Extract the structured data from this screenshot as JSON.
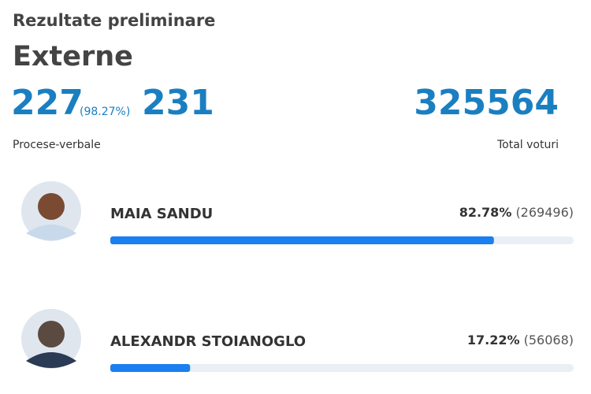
{
  "header": {
    "title": "Rezultate preliminare",
    "subtitle": "Externe"
  },
  "stats": {
    "processed": 227,
    "processed_pct": "(98.27%)",
    "total_protocols": 231,
    "protocols_label": "Procese-verbale",
    "total_votes": 325564,
    "votes_label": "Total voturi"
  },
  "candidates": [
    {
      "name": "MAIA SANDU",
      "percent": {
        "value": 82.78,
        "label": "82.78%"
      },
      "votes": "(269496)",
      "bar_color": "#1a7ff0"
    },
    {
      "name": "ALEXANDR STOIANOGLO",
      "percent": {
        "value": 17.22,
        "label": "17.22%"
      },
      "votes": "(56068)",
      "bar_color": "#1a7ff0"
    }
  ]
}
